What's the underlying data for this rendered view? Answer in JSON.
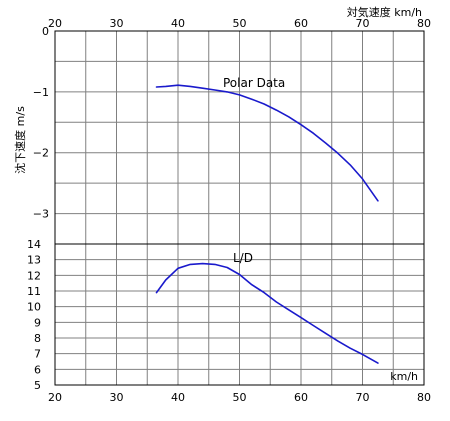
{
  "chart_data": [
    {
      "type": "line",
      "title": "",
      "xlabel": "対気速度 km/h",
      "ylabel": "沈下速度 m/s",
      "xlim": [
        20,
        80
      ],
      "ylim": [
        -3.5,
        0
      ],
      "x_ticks": [
        20,
        30,
        40,
        50,
        60,
        70,
        80
      ],
      "y_ticks": [
        0,
        -1,
        -2,
        -3
      ],
      "y_tick_labels": [
        "0",
        "−1",
        "−2",
        "−3"
      ],
      "grid": true,
      "annotations": [
        "Polar Data"
      ],
      "series": [
        {
          "color": "#1a1acc",
          "x": [
            36.5,
            38,
            40,
            42,
            44,
            46,
            48,
            50,
            52,
            54,
            56,
            58,
            60,
            62,
            64,
            66,
            68,
            70,
            72.5
          ],
          "y": [
            -0.92,
            -0.91,
            -0.89,
            -0.91,
            -0.94,
            -0.97,
            -1.0,
            -1.05,
            -1.12,
            -1.2,
            -1.3,
            -1.41,
            -1.54,
            -1.68,
            -1.84,
            -2.01,
            -2.2,
            -2.43,
            -2.79
          ]
        }
      ]
    },
    {
      "type": "line",
      "title": "",
      "xlabel": "km/h",
      "ylabel": "",
      "xlim": [
        20,
        80
      ],
      "ylim": [
        5,
        14
      ],
      "x_ticks": [
        20,
        30,
        40,
        50,
        60,
        70,
        80
      ],
      "y_ticks": [
        5,
        6,
        7,
        8,
        9,
        10,
        11,
        12,
        13,
        14
      ],
      "grid": true,
      "annotations": [
        "L/D"
      ],
      "series": [
        {
          "color": "#1a1acc",
          "x": [
            36.5,
            38,
            40,
            42,
            44,
            46,
            48,
            50,
            52,
            54,
            56,
            58,
            60,
            62,
            64,
            66,
            68,
            70,
            72.5
          ],
          "y": [
            10.9,
            11.7,
            12.45,
            12.7,
            12.75,
            12.7,
            12.5,
            12.05,
            11.4,
            10.9,
            10.3,
            9.8,
            9.3,
            8.8,
            8.3,
            7.8,
            7.35,
            6.95,
            6.4
          ]
        }
      ]
    }
  ]
}
